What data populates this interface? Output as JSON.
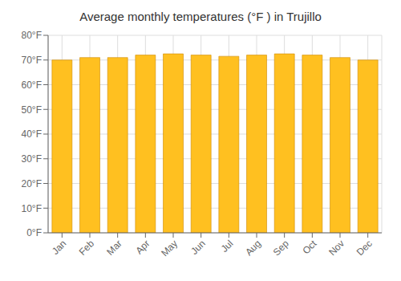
{
  "chart_data": {
    "type": "bar",
    "title": "Average monthly temperatures (°F ) in Trujillo",
    "categories": [
      "Jan",
      "Feb",
      "Mar",
      "Apr",
      "May",
      "Jun",
      "Jul",
      "Aug",
      "Sep",
      "Oct",
      "Nov",
      "Dec"
    ],
    "values": [
      70,
      71,
      71,
      72,
      72.5,
      72,
      71.5,
      72,
      72.5,
      72,
      71,
      70
    ],
    "color": "#FFC020",
    "ylim": [
      0,
      80
    ],
    "yticks": [
      {
        "value": 0,
        "label": "0°F"
      },
      {
        "value": 10,
        "label": "10°F"
      },
      {
        "value": 20,
        "label": "20°F"
      },
      {
        "value": 30,
        "label": "30°F"
      },
      {
        "value": 40,
        "label": "40°F"
      },
      {
        "value": 50,
        "label": "50°F"
      },
      {
        "value": 60,
        "label": "60°F"
      },
      {
        "value": 70,
        "label": "70°F"
      },
      {
        "value": 80,
        "label": "80°F"
      }
    ],
    "grid": true
  }
}
